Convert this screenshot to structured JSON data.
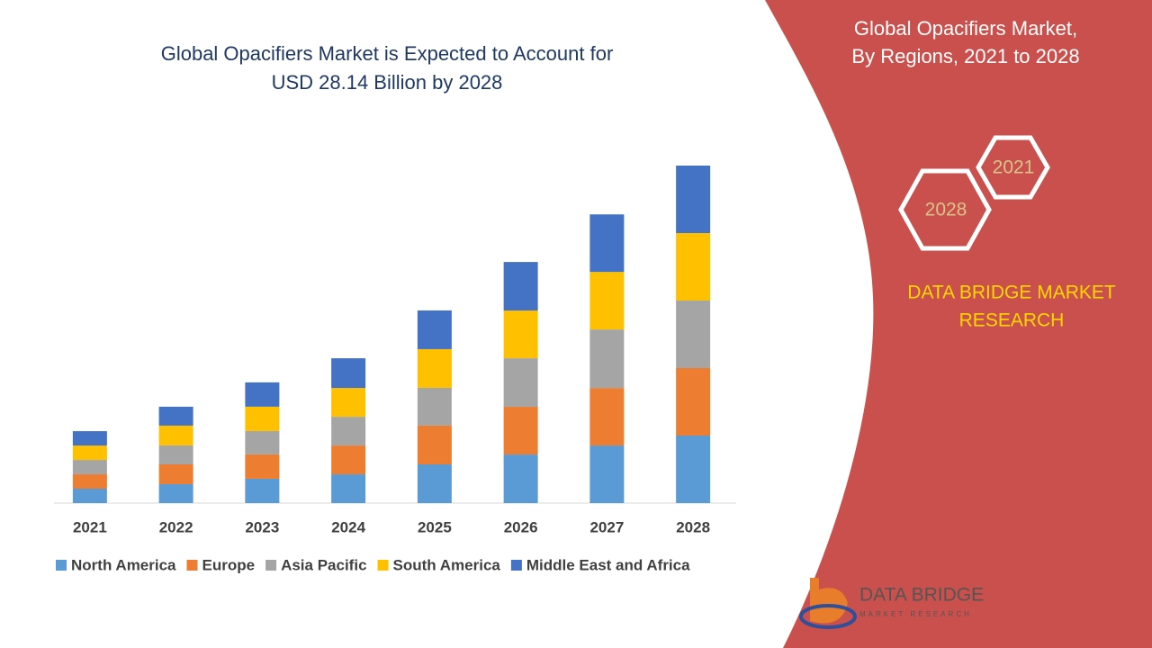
{
  "chart_data": {
    "type": "stacked_bar",
    "title": [
      "Global Opacifiers Market is Expected to Account for",
      "USD 28.14 Billion by 2028"
    ],
    "categories": [
      "2021",
      "2022",
      "2023",
      "2024",
      "2025",
      "2026",
      "2027",
      "2028"
    ],
    "series": [
      {
        "name": "North America",
        "color": "#5b9bd5",
        "values": [
          1.2,
          1.58,
          2.03,
          2.4,
          3.23,
          4.05,
          4.8,
          5.63
        ]
      },
      {
        "name": "Europe",
        "color": "#ed7d31",
        "values": [
          1.2,
          1.65,
          2.03,
          2.4,
          3.23,
          3.98,
          4.8,
          5.63
        ]
      },
      {
        "name": "Asia Pacific",
        "color": "#a5a5a5",
        "values": [
          1.2,
          1.58,
          1.95,
          2.4,
          3.15,
          4.05,
          4.88,
          5.63
        ]
      },
      {
        "name": "South America",
        "color": "#ffc000",
        "values": [
          1.2,
          1.65,
          2.03,
          2.4,
          3.23,
          3.98,
          4.8,
          5.63
        ]
      },
      {
        "name": "Middle East and Africa",
        "color": "#4472c4",
        "values": [
          1.2,
          1.58,
          2.03,
          2.48,
          3.23,
          4.05,
          4.8,
          5.63
        ]
      }
    ]
  },
  "side_panel": {
    "title": [
      "Global Opacifiers Market,",
      "By Regions, 2021 to 2028"
    ],
    "hexagons": [
      "2021",
      "2028"
    ],
    "brand": [
      "DATA BRIDGE MARKET",
      "RESEARCH"
    ]
  },
  "logo": {
    "name": "DATA BRIDGE",
    "tagline": "MARKET RESEARCH"
  }
}
